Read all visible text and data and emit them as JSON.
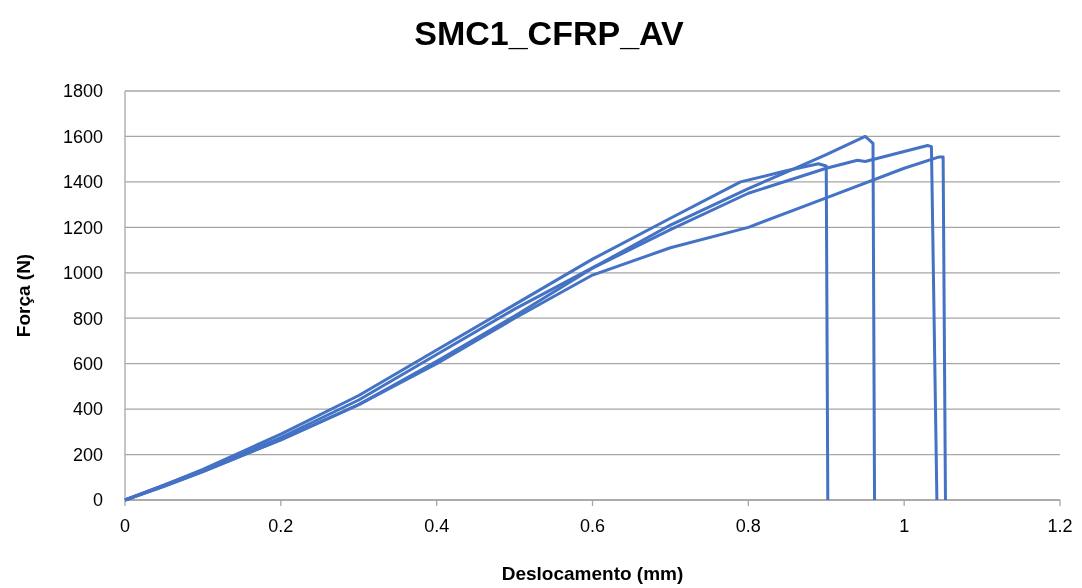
{
  "chart_data": {
    "type": "line",
    "title": "SMC1_CFRP_AV",
    "xlabel": "Deslocamento (mm)",
    "ylabel": "Força (N)",
    "xlim": [
      0,
      1.2
    ],
    "xticks": [
      0,
      0.2,
      0.4,
      0.6,
      0.8,
      1,
      1.2
    ],
    "ylim": [
      0,
      1800
    ],
    "yticks": [
      0,
      200,
      400,
      600,
      800,
      1000,
      1200,
      1400,
      1600,
      1800
    ],
    "grid": "y",
    "marker": "none",
    "line_style": "solid",
    "series": [
      {
        "color": "#4472c4",
        "x": [
          0,
          0.05,
          0.1,
          0.2,
          0.3,
          0.4,
          0.5,
          0.61,
          0.7,
          0.8,
          0.86,
          0.9,
          0.95,
          0.96,
          0.962
        ],
        "values": [
          0,
          65,
          130,
          275,
          440,
          640,
          840,
          1040,
          1210,
          1370,
          1460,
          1520,
          1600,
          1570,
          0
        ]
      },
      {
        "color": "#4472c4",
        "x": [
          0,
          0.05,
          0.1,
          0.2,
          0.3,
          0.4,
          0.5,
          0.6,
          0.7,
          0.79,
          0.85,
          0.89,
          0.9,
          0.902
        ],
        "values": [
          0,
          65,
          135,
          290,
          460,
          660,
          860,
          1060,
          1240,
          1400,
          1450,
          1480,
          1470,
          0
        ]
      },
      {
        "color": "#4472c4",
        "x": [
          0,
          0.05,
          0.1,
          0.2,
          0.3,
          0.4,
          0.5,
          0.6,
          0.7,
          0.8,
          0.9,
          0.94,
          0.95,
          1.03,
          1.035,
          1.042
        ],
        "values": [
          0,
          60,
          125,
          265,
          420,
          610,
          810,
          1020,
          1190,
          1350,
          1460,
          1495,
          1490,
          1560,
          1555,
          0
        ]
      },
      {
        "color": "#4472c4",
        "x": [
          0,
          0.05,
          0.1,
          0.2,
          0.3,
          0.4,
          0.5,
          0.6,
          0.7,
          0.8,
          0.9,
          1,
          1.045,
          1.05,
          1.053
        ],
        "values": [
          0,
          60,
          125,
          265,
          420,
          600,
          800,
          990,
          1110,
          1200,
          1330,
          1460,
          1510,
          1510,
          0
        ]
      }
    ]
  }
}
